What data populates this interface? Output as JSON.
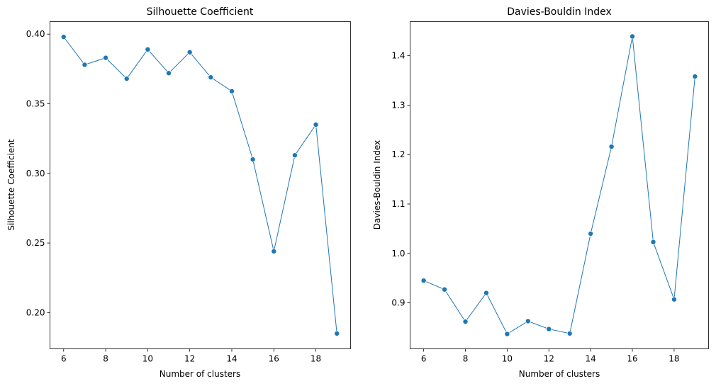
{
  "chart_data": [
    {
      "type": "line",
      "title": "Silhouette Coefficient",
      "xlabel": "Number of clusters",
      "ylabel": "Silhouette Coefficient",
      "x": [
        6,
        7,
        8,
        9,
        10,
        11,
        12,
        13,
        14,
        15,
        16,
        17,
        18,
        19
      ],
      "series": [
        {
          "values": [
            0.398,
            0.378,
            0.383,
            0.368,
            0.389,
            0.372,
            0.387,
            0.369,
            0.359,
            0.31,
            0.244,
            0.313,
            0.335,
            0.185
          ],
          "color": "#1f77b4",
          "marker": "circle"
        }
      ],
      "xlim": [
        5.35,
        19.65
      ],
      "ylim": [
        0.174,
        0.409
      ],
      "xticks": [
        6,
        8,
        10,
        12,
        14,
        16,
        18
      ],
      "xtick_labels": [
        "6",
        "8",
        "10",
        "12",
        "14",
        "16",
        "18"
      ],
      "yticks": [
        0.2,
        0.25,
        0.3,
        0.35,
        0.4
      ],
      "ytick_labels": [
        "0.20",
        "0.25",
        "0.30",
        "0.35",
        "0.40"
      ],
      "grid": false,
      "legend": false
    },
    {
      "type": "line",
      "title": "Davies-Bouldin Index",
      "xlabel": "Number of clusters",
      "ylabel": "Davies-Bouldin Index",
      "x": [
        6,
        7,
        8,
        9,
        10,
        11,
        12,
        13,
        14,
        15,
        16,
        17,
        18,
        19
      ],
      "series": [
        {
          "values": [
            0.945,
            0.927,
            0.862,
            0.92,
            0.837,
            0.863,
            0.847,
            0.838,
            1.04,
            1.216,
            1.439,
            1.023,
            0.907,
            1.358
          ],
          "color": "#1f77b4",
          "marker": "circle"
        }
      ],
      "xlim": [
        5.35,
        19.65
      ],
      "ylim": [
        0.807,
        1.469
      ],
      "xticks": [
        6,
        8,
        10,
        12,
        14,
        16,
        18
      ],
      "xtick_labels": [
        "6",
        "8",
        "10",
        "12",
        "14",
        "16",
        "18"
      ],
      "yticks": [
        0.9,
        1.0,
        1.1,
        1.2,
        1.3,
        1.4
      ],
      "ytick_labels": [
        "0.9",
        "1.0",
        "1.1",
        "1.2",
        "1.3",
        "1.4"
      ],
      "grid": false,
      "legend": false
    }
  ]
}
